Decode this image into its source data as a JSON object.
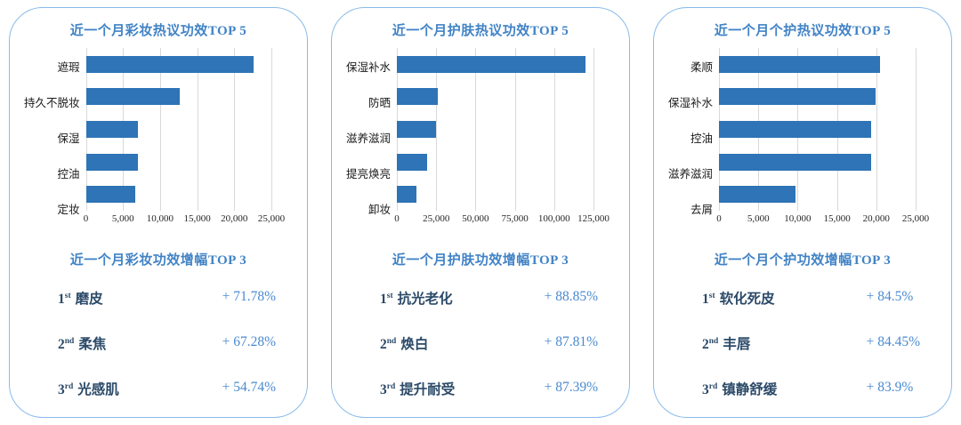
{
  "colors": {
    "bar": "#2e74b6",
    "title_blue": "#4183c6",
    "percent_blue": "#4a8ad0",
    "rank_text": "#2b4a68",
    "panel_border": "#88bbea",
    "gridline": "#d9d9d9",
    "axis_text": "#262626"
  },
  "chart_data": [
    {
      "type": "bar",
      "orientation": "horizontal",
      "title": "近一个月彩妆热议功效TOP 5",
      "categories": [
        "遮瑕",
        "持久不脱妆",
        "保湿",
        "控油",
        "定妆"
      ],
      "values": [
        22600,
        12700,
        7000,
        7000,
        6700
      ],
      "xlabel": "",
      "ylabel": "",
      "xlim": [
        0,
        25000
      ],
      "ticks": [
        "0",
        "5,000",
        "10,000",
        "15,000",
        "20,000",
        "25,000"
      ],
      "grid": true,
      "legend": false
    },
    {
      "type": "bar",
      "orientation": "horizontal",
      "title": "近一个月护肤热议功效TOP 5",
      "categories": [
        "保湿补水",
        "防晒",
        "滋养滋润",
        "提亮焕亮",
        "卸妆"
      ],
      "values": [
        120000,
        25800,
        25000,
        19000,
        12700
      ],
      "xlabel": "",
      "ylabel": "",
      "xlim": [
        0,
        125000
      ],
      "ticks": [
        "0",
        "25,000",
        "50,000",
        "75,000",
        "100,000",
        "125,000"
      ],
      "grid": true,
      "legend": false
    },
    {
      "type": "bar",
      "orientation": "horizontal",
      "title": "近一个月个护热议功效TOP 5",
      "categories": [
        "柔顺",
        "保湿补水",
        "控油",
        "滋养滋润",
        "去屑"
      ],
      "values": [
        20500,
        19900,
        19300,
        19300,
        9700
      ],
      "xlabel": "",
      "ylabel": "",
      "xlim": [
        0,
        25000
      ],
      "ticks": [
        "0",
        "5,000",
        "10,000",
        "15,000",
        "20,000",
        "25,000"
      ],
      "grid": true,
      "legend": false
    }
  ],
  "panels": [
    {
      "growth": {
        "title": "近一个月彩妆功效增幅TOP 3",
        "items": [
          {
            "rank": "1",
            "suffix": "st",
            "label": "磨皮",
            "value": "+ 71.78%"
          },
          {
            "rank": "2",
            "suffix": "nd",
            "label": "柔焦",
            "value": "+ 67.28%"
          },
          {
            "rank": "3",
            "suffix": "rd",
            "label": "光感肌",
            "value": "+ 54.74%"
          }
        ]
      }
    },
    {
      "growth": {
        "title": "近一个月护肤功效增幅TOP 3",
        "items": [
          {
            "rank": "1",
            "suffix": "st",
            "label": "抗光老化",
            "value": "+ 88.85%"
          },
          {
            "rank": "2",
            "suffix": "nd",
            "label": "焕白",
            "value": "+ 87.81%"
          },
          {
            "rank": "3",
            "suffix": "rd",
            "label": "提升耐受",
            "value": "+ 87.39%"
          }
        ]
      }
    },
    {
      "growth": {
        "title": "近一个月个护功效增幅TOP 3",
        "items": [
          {
            "rank": "1",
            "suffix": "st",
            "label": "软化死皮",
            "value": "+ 84.5%"
          },
          {
            "rank": "2",
            "suffix": "nd",
            "label": "丰唇",
            "value": "+ 84.45%"
          },
          {
            "rank": "3",
            "suffix": "rd",
            "label": "镇静舒缓",
            "value": "+ 83.9%"
          }
        ]
      }
    }
  ]
}
